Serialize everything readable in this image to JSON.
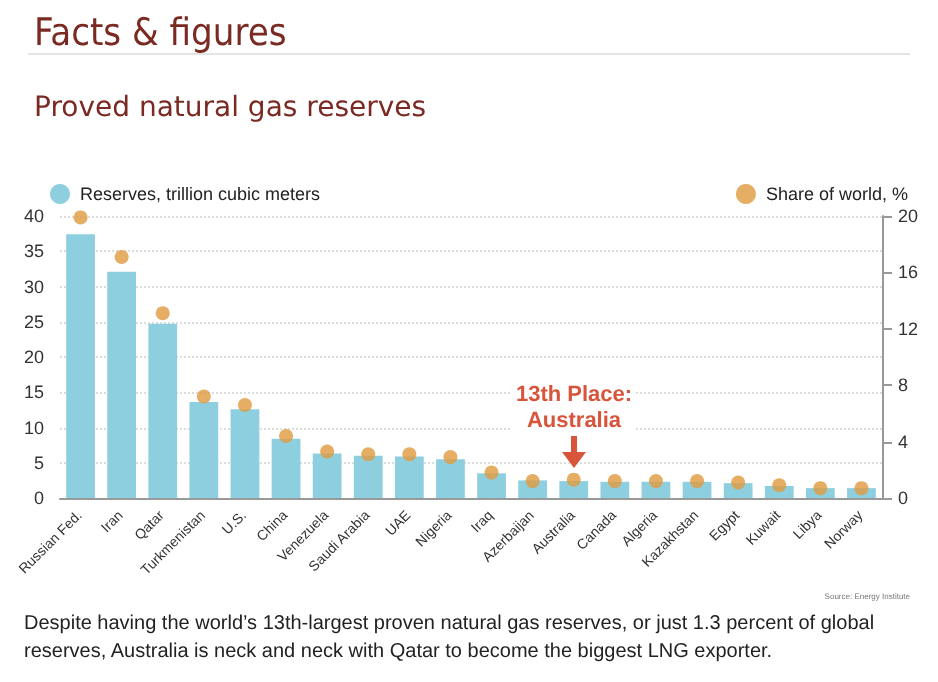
{
  "chart_data": {
    "type": "bar",
    "title": "Facts & figures",
    "subtitle": "Proved natural gas reserves",
    "categories": [
      "Russian Fed.",
      "Iran",
      "Qatar",
      "Turkmenistan",
      "U.S.",
      "China",
      "Venezuela",
      "Saudi Arabia",
      "UAE",
      "Nigeria",
      "Iraq",
      "Azerbaijan",
      "Australia",
      "Canada",
      "Algeria",
      "Kazakhstan",
      "Egypt",
      "Kuwait",
      "Libya",
      "Norway"
    ],
    "series": [
      {
        "name": "Reserves, trillion cubic meters",
        "color": "#8ecfdf",
        "values": [
          37.4,
          32.1,
          24.7,
          13.6,
          12.6,
          8.4,
          6.3,
          6.0,
          5.9,
          5.5,
          3.5,
          2.5,
          2.4,
          2.3,
          2.3,
          2.3,
          2.1,
          1.7,
          1.4,
          1.4
        ]
      },
      {
        "name": "Share of world, %",
        "type": "scatter",
        "axis": "y2",
        "color": "#e09a3e",
        "values": [
          19.9,
          17.1,
          13.1,
          7.2,
          6.6,
          4.4,
          3.3,
          3.1,
          3.1,
          2.9,
          1.8,
          1.2,
          1.3,
          1.2,
          1.2,
          1.2,
          1.1,
          0.9,
          0.7,
          0.7
        ]
      }
    ],
    "ylim": [
      0,
      40
    ],
    "yticks": [
      0,
      5,
      10,
      15,
      20,
      25,
      30,
      35,
      40
    ],
    "y2lim": [
      0,
      20
    ],
    "y2ticks": [
      0,
      4,
      8,
      12,
      16,
      20
    ],
    "grid": "y",
    "legend": "top",
    "marker": "circle",
    "annotations": [
      "13th Place:\nAustralia",
      "Source: Energy Institute",
      "Despite having the world’s 13th-largest proven natural gas reserves, or just 1.3 percent of global reserves, Australia is neck and neck with Qatar to become the biggest LNG exporter."
    ]
  }
}
